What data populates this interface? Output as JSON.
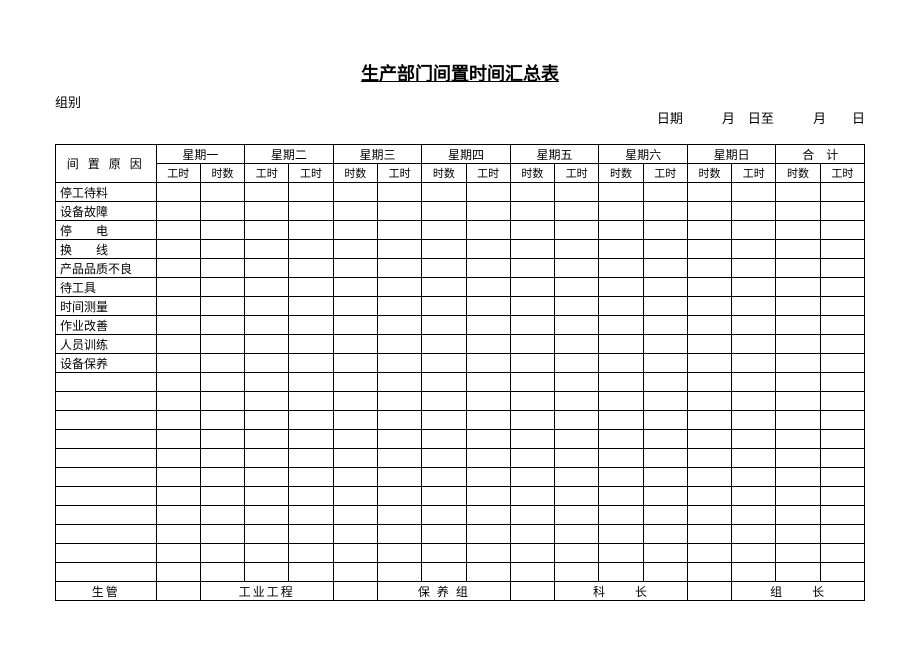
{
  "title": "生产部门间置时间汇总表",
  "header": {
    "group_label": "组别",
    "date_label": "日期",
    "month1": "月",
    "day1": "日至",
    "month2": "月",
    "day2": "日"
  },
  "table": {
    "reason_header": "间 置 原 因",
    "days": [
      "星期一",
      "星期二",
      "星期三",
      "星期四",
      "星期五",
      "星期六",
      "星期日",
      "合　计"
    ],
    "sub": {
      "gongshi": "工时",
      "shishu": "时数"
    },
    "subheaders": [
      [
        "工时",
        "时数"
      ],
      [
        "工时",
        "工时"
      ],
      [
        "时数",
        "工时"
      ],
      [
        "时数",
        "工时"
      ],
      [
        "时数",
        "工时"
      ],
      [
        "时数",
        "工时"
      ],
      [
        "时数",
        "工时"
      ],
      [
        "时数",
        "工时"
      ]
    ],
    "reasons": [
      "停工待料",
      "设备故障",
      "停　　电",
      "换　　线",
      "产品品质不良",
      "待工具",
      "时间测量",
      "作业改善",
      "人员训练",
      "设备保养",
      "",
      "",
      "",
      "",
      "",
      "",
      "",
      "",
      "",
      "",
      ""
    ],
    "footer": {
      "cells": [
        {
          "span": 1,
          "text": "生管"
        },
        {
          "span": 1,
          "text": ""
        },
        {
          "span": 3,
          "text": "工业工程"
        },
        {
          "span": 1,
          "text": ""
        },
        {
          "span": 3,
          "text": "保 养 组"
        },
        {
          "span": 1,
          "text": ""
        },
        {
          "span": 3,
          "text": "科　　长"
        },
        {
          "span": 1,
          "text": ""
        },
        {
          "span": 3,
          "text": "组　　长"
        }
      ]
    }
  },
  "style": {
    "background": "#ffffff",
    "border_color": "#000000",
    "title_fontsize": 18,
    "body_fontsize": 12
  }
}
